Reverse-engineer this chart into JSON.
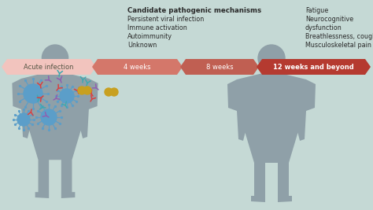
{
  "bg_color": "#c5d9d5",
  "arrow_labels": [
    "Acute infection",
    "4 weeks",
    "8 weeks",
    "12 weeks and beyond"
  ],
  "arrow_colors": [
    "#f2c4be",
    "#d4776a",
    "#c05f52",
    "#b53a30"
  ],
  "arrow_text_colors": [
    "#555544",
    "#ffffff",
    "#ffffff",
    "#ffffff"
  ],
  "arrow_bold": [
    false,
    false,
    false,
    true
  ],
  "candidate_title": "Candidate pathogenic mechanisms",
  "candidate_items": [
    "Persistent viral infection",
    "Immune activation",
    "Autoimmunity",
    "Unknown"
  ],
  "symptoms": [
    "Fatigue",
    "Neurocognitive",
    "dysfunction",
    "Breathlessness, cough",
    "Musculoskeletal pain"
  ],
  "person_color": "#8fa0a8",
  "virus_color": "#5b9ec9",
  "figure_width": 4.74,
  "figure_height": 2.67,
  "dpi": 100
}
